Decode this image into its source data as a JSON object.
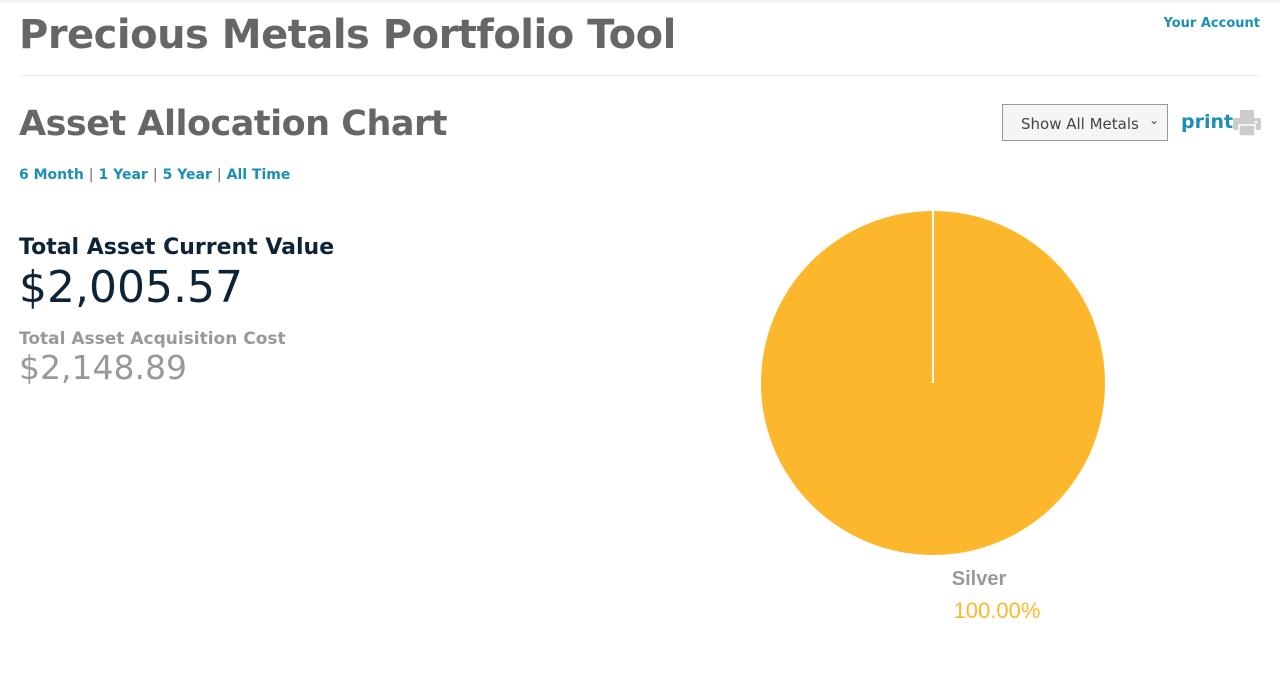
{
  "header": {
    "title": "Precious Metals Portfolio Tool",
    "account_link": "Your Account"
  },
  "section": {
    "title": "Asset Allocation Chart",
    "metal_filter": "Show All Metals",
    "print_label": "print",
    "print_icon": "printer-icon"
  },
  "ranges": [
    "6 Month",
    "1 Year",
    "5 Year",
    "All Time"
  ],
  "summary": {
    "current_label": "Total Asset Current Value",
    "current_value": "$2,005.57",
    "cost_label": "Total Asset Acquisition Cost",
    "cost_value": "$2,148.89"
  },
  "chart_data": {
    "type": "pie",
    "categories": [
      "Silver"
    ],
    "values": [
      100.0
    ],
    "labels": [
      "100.00%"
    ],
    "colors": [
      "#fdb72c"
    ]
  }
}
